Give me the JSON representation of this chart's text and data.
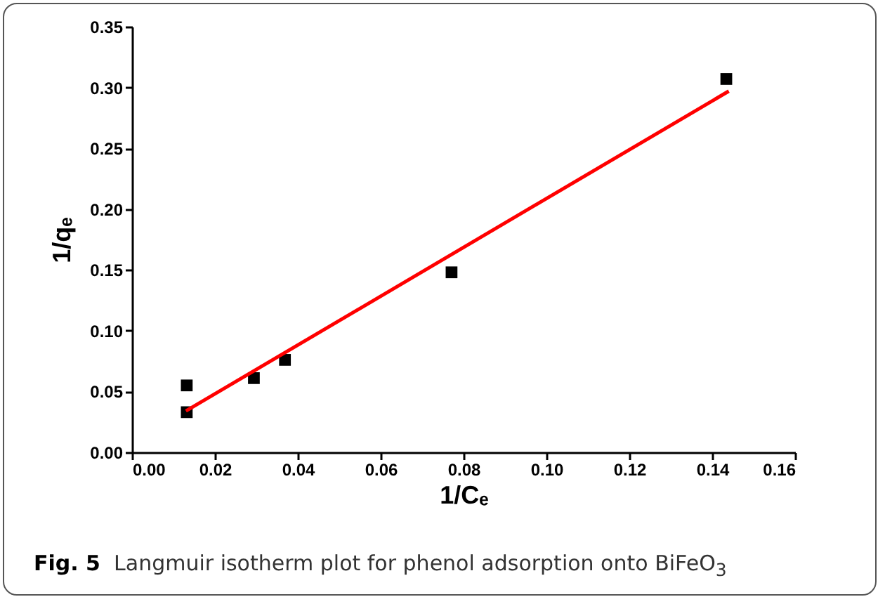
{
  "chart_data": {
    "type": "scatter",
    "xlabel": "1/Cₑ",
    "ylabel": "1/qₑ",
    "annotations": [
      "Fig. 5  Langmuir isotherm plot for phenol adsorption onto BiFeO$_{3}$"
    ],
    "series": [
      {
        "color": "#000000",
        "marker": "square",
        "x": [
          0.0132,
          0.0132,
          0.0294,
          0.0369,
          0.0771,
          0.1434
        ],
        "values": [
          0.055,
          0.033,
          0.061,
          0.076,
          0.148,
          0.307
        ]
      },
      {
        "type": "line",
        "color": "#ff0000",
        "line_style": "solid",
        "x": [
          0.013,
          0.144
        ],
        "values": [
          0.034,
          0.297
        ]
      }
    ],
    "xlim": [
      0,
      0.16
    ],
    "xticks": [
      {
        "value": 0,
        "label": "0.00"
      },
      {
        "value": 0.02,
        "label": "0.02"
      },
      {
        "value": 0.04,
        "label": "0.04"
      },
      {
        "value": 0.06,
        "label": "0.06"
      },
      {
        "value": 0.08,
        "label": "0.08"
      },
      {
        "value": 0.1,
        "label": "0.10"
      },
      {
        "value": 0.12,
        "label": "0.12"
      },
      {
        "value": 0.14,
        "label": "0.14"
      },
      {
        "value": 0.16,
        "label": "0.16"
      }
    ],
    "ylim": [
      0,
      0.35
    ],
    "yticks": [
      {
        "value": 0,
        "label": "0.00"
      },
      {
        "value": 0.05,
        "label": "0.05"
      },
      {
        "value": 0.1,
        "label": "0.10"
      },
      {
        "value": 0.15,
        "label": "0.15"
      },
      {
        "value": 0.2,
        "label": "0.20"
      },
      {
        "value": 0.25,
        "label": "0.25"
      },
      {
        "value": 0.3,
        "label": "0.30"
      },
      {
        "value": 0.35,
        "label": "0.35"
      }
    ],
    "grid": false
  }
}
